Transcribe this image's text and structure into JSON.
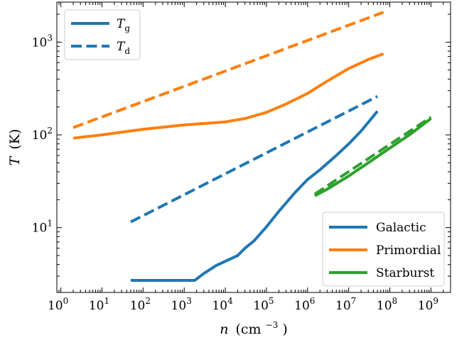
{
  "chart_data": {
    "type": "line",
    "xscale": "log",
    "yscale": "log",
    "xlim": [
      0.8,
      3000000000
    ],
    "ylim": [
      2.0,
      2700
    ],
    "xticks": [
      {
        "value": 1,
        "base": "10",
        "exp": "0"
      },
      {
        "value": 10,
        "base": "10",
        "exp": "1"
      },
      {
        "value": 100,
        "base": "10",
        "exp": "2"
      },
      {
        "value": 1000,
        "base": "10",
        "exp": "3"
      },
      {
        "value": 10000,
        "base": "10",
        "exp": "4"
      },
      {
        "value": 100000,
        "base": "10",
        "exp": "5"
      },
      {
        "value": 1000000,
        "base": "10",
        "exp": "6"
      },
      {
        "value": 10000000,
        "base": "10",
        "exp": "7"
      },
      {
        "value": 100000000,
        "base": "10",
        "exp": "8"
      },
      {
        "value": 1000000000,
        "base": "10",
        "exp": "9"
      }
    ],
    "yticks": [
      {
        "value": 10,
        "base": "10",
        "exp": "1"
      },
      {
        "value": 100,
        "base": "10",
        "exp": "2"
      },
      {
        "value": 1000,
        "base": "10",
        "exp": "3"
      }
    ],
    "xlabel": {
      "var": "n",
      "unit": "(cm",
      "exp": "−3",
      "close": ")"
    },
    "ylabel": {
      "var": "T",
      "unit": "(K)"
    },
    "colors": {
      "Galactic": "#1f77b4",
      "Primordial": "#ff7f0e",
      "Starburst": "#2ca02c"
    },
    "series": [
      {
        "name": "Galactic",
        "kind": "Tg",
        "x": [
          50,
          1800,
          3000,
          6000,
          20000,
          30000,
          50000,
          100000,
          200000,
          500000,
          1000000,
          2000000,
          5000000,
          10000000,
          20000000,
          50000000
        ],
        "y": [
          2.7,
          2.7,
          3.2,
          3.9,
          5.0,
          6.0,
          7.2,
          10.2,
          15.0,
          24.0,
          33.0,
          42.0,
          60.0,
          80.0,
          110.0,
          180.0
        ]
      },
      {
        "name": "Galactic",
        "kind": "Td",
        "x": [
          50,
          50000000
        ],
        "y": [
          11.5,
          260
        ]
      },
      {
        "name": "Primordial",
        "kind": "Tg",
        "x": [
          2,
          10,
          100,
          1000,
          10000,
          30000,
          100000,
          300000,
          1000000,
          3000000,
          10000000,
          30000000,
          70000000
        ],
        "y": [
          92,
          100,
          115,
          128,
          138,
          150,
          175,
          215,
          280,
          380,
          520,
          650,
          750
        ]
      },
      {
        "name": "Primordial",
        "kind": "Td",
        "x": [
          2,
          70000000
        ],
        "y": [
          120,
          2100
        ]
      },
      {
        "name": "Starburst",
        "kind": "Tg",
        "x": [
          1500000,
          3000000,
          10000000,
          30000000,
          100000000,
          300000000,
          1000000000
        ],
        "y": [
          22,
          26,
          36,
          50,
          72,
          100,
          150
        ]
      },
      {
        "name": "Starburst",
        "kind": "Td",
        "x": [
          1500000,
          1000000000
        ],
        "y": [
          23,
          155
        ]
      }
    ],
    "legend_styles": {
      "position": "top-left",
      "entries": [
        {
          "var": "T",
          "sub": "g",
          "dash": false
        },
        {
          "var": "T",
          "sub": "d",
          "dash": true
        }
      ]
    },
    "legend_series": {
      "position": "bottom-right",
      "entries": [
        "Galactic",
        "Primordial",
        "Starburst"
      ]
    }
  }
}
